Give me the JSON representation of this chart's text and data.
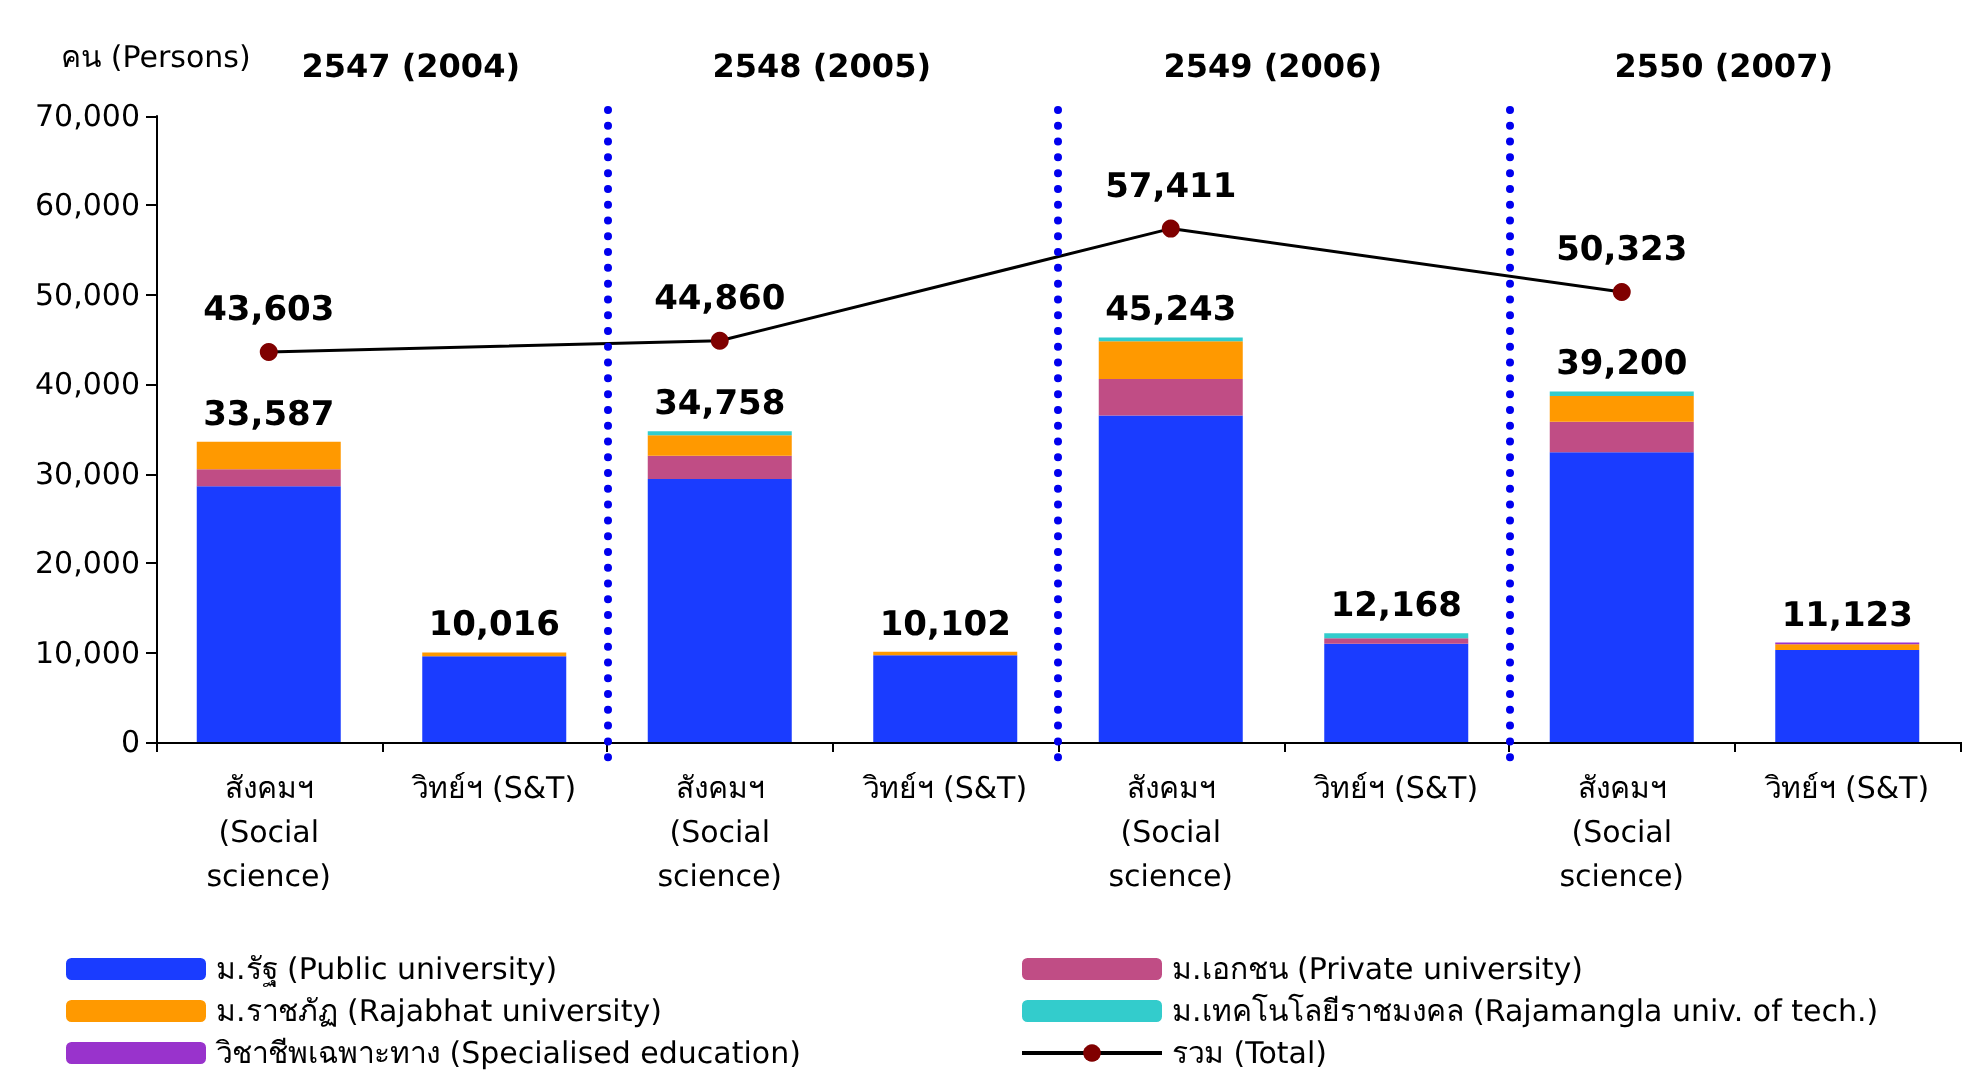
{
  "chart_data": {
    "type": "bar",
    "stacked": true,
    "ylabel": "คน (Persons)",
    "categories": [
      "สังคมฯ (Social science)",
      "วิทย์ฯ (S&T)",
      "สังคมฯ (Social science)",
      "วิทย์ฯ (S&T)",
      "สังคมฯ (Social science)",
      "วิทย์ฯ (S&T)",
      "สังคมฯ (Social science)",
      "วิทย์ฯ (S&T)"
    ],
    "annotations": [
      "2547 (2004)",
      "2548 (2005)",
      "2549 (2006)",
      "2550 (2007)"
    ],
    "series": [
      {
        "name": "ม.รัฐ (Public university)",
        "color": "#1a3cff",
        "values": [
          28600,
          9600,
          29400,
          9700,
          36500,
          11000,
          32400,
          10300
        ]
      },
      {
        "name": "ม.เอกชน (Private university)",
        "color": "#c04d85",
        "values": [
          1900,
          null,
          2600,
          null,
          4100,
          600,
          3400,
          null
        ]
      },
      {
        "name": "ม.ราชภัฏ (Rajabhat university)",
        "color": "#ff9900",
        "values": [
          3087,
          416,
          2300,
          402,
          4200,
          null,
          2900,
          623
        ]
      },
      {
        "name": "ม.เทคโนโลยีราชมงคล (Rajamangla univ. of tech.)",
        "color": "#33cccc",
        "values": [
          null,
          null,
          458,
          null,
          443,
          568,
          500,
          null
        ]
      },
      {
        "name": "วิชาชีพเฉพาะทาง (Specialised education)",
        "color": "#9933cc",
        "values": [
          null,
          null,
          null,
          null,
          null,
          null,
          null,
          200
        ]
      },
      {
        "name": "รวม (Total)",
        "type": "line",
        "color": "#800000",
        "marker": "circle",
        "values": [
          43603,
          null,
          44860,
          null,
          57411,
          null,
          50323,
          null
        ],
        "value_labels": [
          "43,603",
          null,
          "44,860",
          null,
          "57,411",
          null,
          "50,323",
          null
        ]
      }
    ],
    "totals": [
      "33,587",
      "10,016",
      "34,758",
      "10,102",
      "45,243",
      "12,168",
      "39,200",
      "11,123"
    ],
    "ylim": [
      0,
      70000
    ],
    "yticks": [
      0,
      {
        "value": 10000,
        "label": "10,000"
      },
      {
        "value": 20000,
        "label": "20,000"
      },
      {
        "value": 30000,
        "label": "30,000"
      },
      {
        "value": 40000,
        "label": "40,000"
      },
      {
        "value": 50000,
        "label": "50,000"
      },
      {
        "value": 60000,
        "label": "60,000"
      },
      {
        "value": 70000,
        "label": "70,000"
      }
    ],
    "grid": false,
    "legend": "bottom"
  }
}
